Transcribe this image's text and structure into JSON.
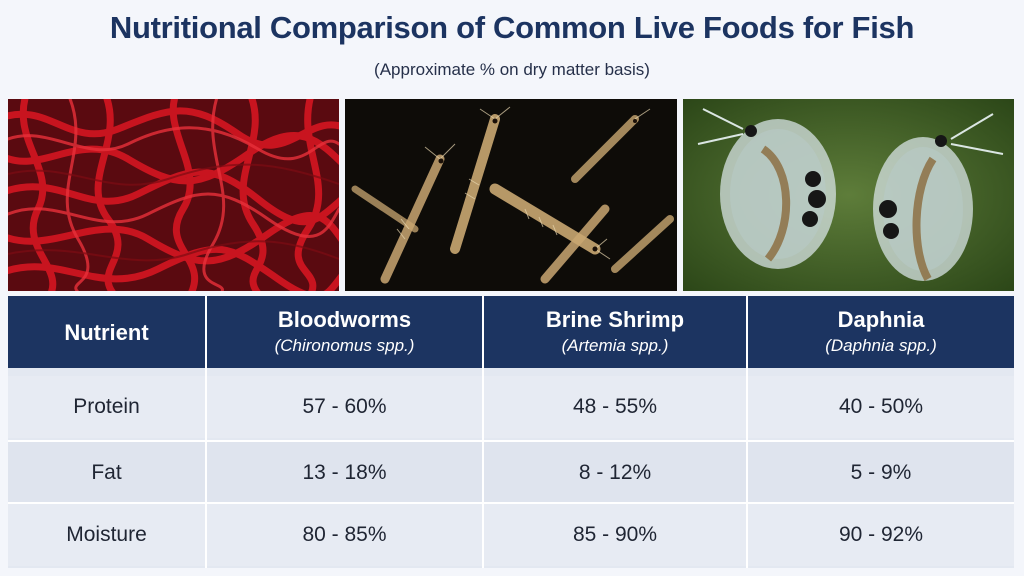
{
  "title": "Nutritional Comparison of Common Live Foods for Fish",
  "subtitle": "(Approximate % on dry matter basis)",
  "photos": [
    {
      "subject": "bloodworms"
    },
    {
      "subject": "brine shrimp"
    },
    {
      "subject": "daphnia"
    }
  ],
  "table": {
    "header": {
      "nutrient": "Nutrient",
      "columns": [
        {
          "name": "Bloodworms",
          "latin": "(Chironomus spp.)"
        },
        {
          "name": "Brine Shrimp",
          "latin": "(Artemia spp.)"
        },
        {
          "name": "Daphnia",
          "latin": "(Daphnia spp.)"
        }
      ]
    },
    "rows": [
      {
        "label": "Protein",
        "values": [
          "57 - 60%",
          "48 - 55%",
          "40 - 50%"
        ]
      },
      {
        "label": "Fat",
        "values": [
          "13 - 18%",
          "8 - 12%",
          "5 - 9%"
        ]
      },
      {
        "label": "Moisture",
        "values": [
          "80 - 85%",
          "85 - 90%",
          "90 - 92%"
        ]
      }
    ]
  },
  "colors": {
    "header_bg": "#1c3461",
    "title": "#1c3461",
    "bloodworm_red": "#b3121b",
    "daphnia_green": "#4a6b2c"
  }
}
